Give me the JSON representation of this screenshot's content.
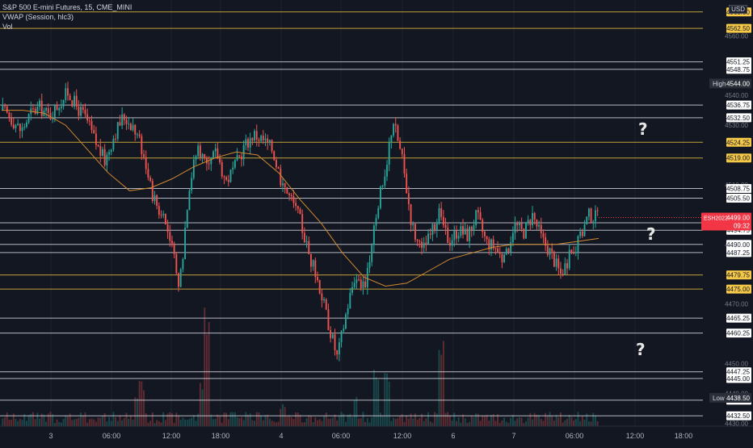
{
  "legend": {
    "symbol": "S&P 500 E-mini Futures, 15, CME_MINI",
    "vwap": "VWAP (Session, hlc3)",
    "vol": "Vol"
  },
  "currency": "USD",
  "annotations": {
    "q1": "?",
    "q2": "?",
    "q3": "?"
  },
  "colors": {
    "background": "#131722",
    "up": "#26a69a",
    "down": "#ef5350",
    "vwap": "#d18a2e",
    "white_line": "#d1d4dc",
    "yellow_line": "#e0b83a",
    "current_price": "#f23645",
    "high_low_label": "#2a2e39"
  },
  "chart_data": {
    "type": "candlestick",
    "title": "S&P 500 E-mini Futures, 15, CME_MINI",
    "y_range": [
      4429,
      4572
    ],
    "x_ticks": [
      "3",
      "06:00",
      "12:00",
      "18:00",
      "4",
      "06:00",
      "12:00",
      "6",
      "7",
      "06:00",
      "12:00",
      "18:00"
    ],
    "y_ticks": [
      "4560.00",
      "4540.00",
      "4530.00",
      "4510.00",
      "4490.00",
      "4470.00",
      "4450.00",
      "4440.00",
      "4430.00"
    ],
    "horizontal_levels": [
      {
        "price": "4568.00",
        "style": "yellow"
      },
      {
        "price": "4562.50",
        "style": "yellow"
      },
      {
        "price": "4551.25",
        "style": "white"
      },
      {
        "price": "4548.75",
        "style": "white"
      },
      {
        "price": "4536.75",
        "style": "white"
      },
      {
        "price": "4532.50",
        "style": "white"
      },
      {
        "price": "4524.25",
        "style": "yellow"
      },
      {
        "price": "4519.00",
        "style": "yellow"
      },
      {
        "price": "4508.75",
        "style": "white"
      },
      {
        "price": "4505.50",
        "style": "white"
      },
      {
        "price": "4497.25",
        "style": "white"
      },
      {
        "price": "4494.75",
        "style": "white"
      },
      {
        "price": "4490.00",
        "style": "white"
      },
      {
        "price": "4487.25",
        "style": "white"
      },
      {
        "price": "4479.75",
        "style": "yellow"
      },
      {
        "price": "4475.00",
        "style": "yellow"
      },
      {
        "price": "4465.25",
        "style": "white"
      },
      {
        "price": "4460.25",
        "style": "white"
      },
      {
        "price": "4447.25",
        "style": "white"
      },
      {
        "price": "4445.00",
        "style": "white"
      },
      {
        "price": "4437.75",
        "style": "white"
      },
      {
        "price": "4432.50",
        "style": "white"
      }
    ],
    "high": {
      "label": "High",
      "value": "4544.00"
    },
    "low": {
      "label": "Low",
      "value": "4438.50"
    },
    "current": {
      "symbol": "ESH2022",
      "value": "4499.00",
      "countdown": "09:32"
    },
    "price_path": [
      4535,
      4532,
      4528,
      4534,
      4536,
      4533,
      4537,
      4541,
      4536,
      4532,
      4524,
      4518,
      4527,
      4533,
      4530,
      4522,
      4508,
      4500,
      4493,
      4474,
      4509,
      4523,
      4516,
      4521,
      4511,
      4516,
      4523,
      4527,
      4525,
      4522,
      4511,
      4505,
      4498,
      4486,
      4477,
      4464,
      4452,
      4468,
      4481,
      4474,
      4498,
      4512,
      4532,
      4518,
      4497,
      4487,
      4493,
      4500,
      4491,
      4495,
      4493,
      4500,
      4491,
      4489,
      4484,
      4497,
      4494,
      4500,
      4492,
      4487,
      4480,
      4486,
      4491,
      4500,
      4499
    ],
    "vwap_path": [
      4535,
      4535,
      4534,
      4530,
      4522,
      4514,
      4508,
      4509,
      4512,
      4516,
      4519,
      4521,
      4520,
      4514,
      4505,
      4497,
      4487,
      4479,
      4476,
      4477,
      4481,
      4485,
      4487,
      4489,
      4490,
      4490,
      4490,
      4491,
      4492
    ]
  }
}
